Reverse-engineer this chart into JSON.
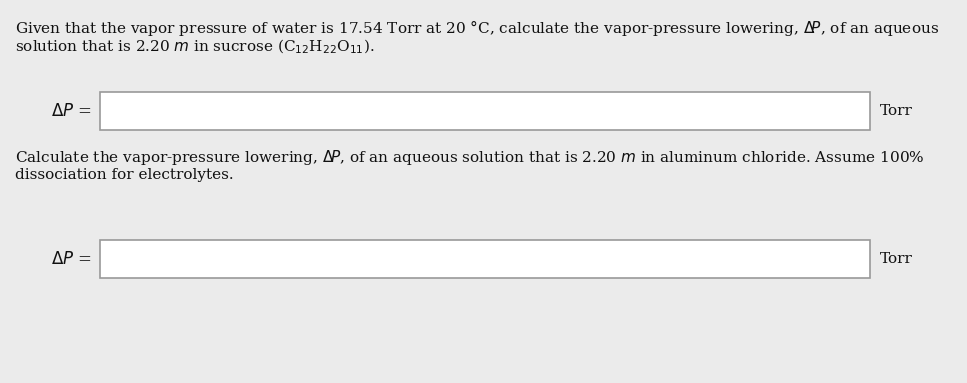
{
  "bg_color": "#ebebeb",
  "box_color": "#ffffff",
  "box_edge_color": "#999999",
  "text_color": "#111111",
  "para1_line1": "Given that the vapor pressure of water is 17.54 Torr at 20 °C, calculate the vapor-pressure lowering, Δ",
  "para1_line1_italic": "P",
  "para1_line1_end": ", of an aqueous",
  "para1_line2_start": "solution that is 2.20 ",
  "para1_line2_italic": "m",
  "para1_line2_end": " in sucrose (C$_{12}$H$_{22}$O$_{11}$).",
  "label1": "ΔP =",
  "unit1": "Torr",
  "para2_line1_start": "Calculate the vapor-pressure lowering, Δ",
  "para2_line1_italic": "P",
  "para2_line1_end": ", of an aqueous solution that is 2.20 ",
  "para2_line1_italic2": "m",
  "para2_line1_end2": " in aluminum chloride. Assume 100%",
  "para2_line2": "dissociation for electrolytes.",
  "label2": "ΔP =",
  "unit2": "Torr",
  "fontsize": 11.0,
  "fig_width": 9.67,
  "fig_height": 3.83,
  "dpi": 100
}
